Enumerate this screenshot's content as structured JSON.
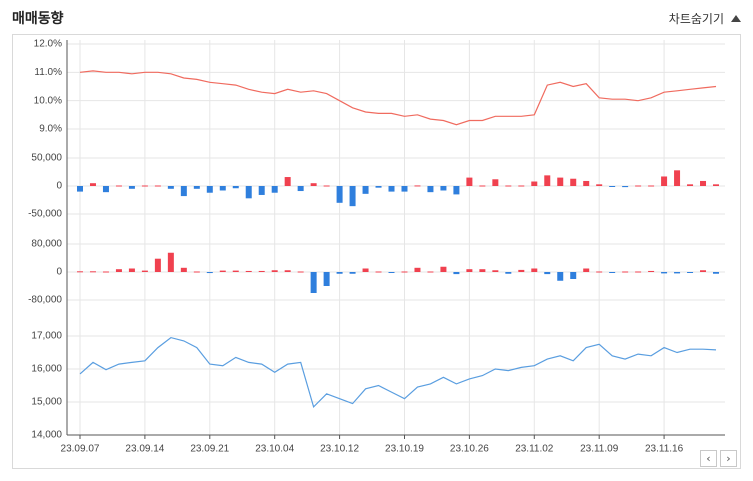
{
  "header": {
    "title": "매매동향",
    "toggle_label": "차트숨기기"
  },
  "colors": {
    "line_red": "#f06b5f",
    "line_blue": "#5a9ee0",
    "bar_pos": "#f0414f",
    "bar_neg": "#2f7fdd",
    "grid": "#e6e6e6"
  },
  "chart_data": [
    {
      "type": "line",
      "name": "panel-1",
      "x": [
        "23.09.07",
        "23.09.08",
        "23.09.11",
        "23.09.12",
        "23.09.13",
        "23.09.14",
        "23.09.15",
        "23.09.18",
        "23.09.19",
        "23.09.20",
        "23.09.21",
        "23.09.22",
        "23.09.25",
        "23.09.26",
        "23.09.27",
        "23.10.04",
        "23.10.05",
        "23.10.06",
        "23.10.10",
        "23.10.11",
        "23.10.12",
        "23.10.13",
        "23.10.16",
        "23.10.17",
        "23.10.18",
        "23.10.19",
        "23.10.20",
        "23.10.23",
        "23.10.24",
        "23.10.25",
        "23.10.26",
        "23.10.27",
        "23.10.30",
        "23.10.31",
        "23.11.01",
        "23.11.02",
        "23.11.03",
        "23.11.06",
        "23.11.07",
        "23.11.08",
        "23.11.09",
        "23.11.10",
        "23.11.13",
        "23.11.14",
        "23.11.15",
        "23.11.16",
        "23.11.17",
        "23.11.20",
        "23.11.21",
        "23.11.22"
      ],
      "values": [
        11.0,
        11.05,
        11.0,
        11.0,
        10.95,
        11.0,
        11.0,
        10.95,
        10.8,
        10.75,
        10.65,
        10.6,
        10.55,
        10.4,
        10.3,
        10.25,
        10.4,
        10.3,
        10.35,
        10.25,
        10.0,
        9.75,
        9.6,
        9.55,
        9.55,
        9.45,
        9.5,
        9.35,
        9.3,
        9.15,
        9.3,
        9.3,
        9.45,
        9.45,
        9.45,
        9.5,
        10.55,
        10.65,
        10.5,
        10.6,
        10.1,
        10.05,
        10.05,
        10.0,
        10.1,
        10.3,
        10.35,
        10.4,
        10.45,
        10.5
      ],
      "ylim": [
        8.0,
        12.0
      ],
      "yticks": [
        "12.0%",
        "11.0%",
        "10.0%",
        "9.0%"
      ]
    },
    {
      "type": "bar",
      "name": "panel-2",
      "x_ref": "panel-1",
      "values": [
        -10000,
        5000,
        -11000,
        0,
        -5000,
        0,
        0,
        -5000,
        -18000,
        -5000,
        -12000,
        -8000,
        -4000,
        -22000,
        -16000,
        -12000,
        16000,
        -9000,
        5000,
        0,
        -30000,
        -36000,
        -14000,
        -3000,
        -10000,
        -10000,
        1000,
        -11000,
        -8000,
        -15000,
        15000,
        0,
        12000,
        0,
        0,
        8000,
        19000,
        15000,
        13000,
        9000,
        3000,
        -1000,
        -2000,
        0,
        0,
        17000,
        28000,
        3000,
        9000,
        3000
      ],
      "ylim": [
        -90000,
        50000
      ],
      "yticks": [
        "50,000",
        "0",
        "-50,000"
      ]
    },
    {
      "type": "bar",
      "name": "panel-3",
      "x_ref": "panel-1",
      "values": [
        2000,
        2000,
        0,
        8000,
        10000,
        4000,
        38000,
        55000,
        12000,
        0,
        -3000,
        4000,
        4000,
        3000,
        3000,
        5000,
        5000,
        0,
        -60000,
        -40000,
        -5000,
        -5000,
        10000,
        0,
        -2000,
        0,
        12000,
        0,
        15000,
        -6000,
        8000,
        8000,
        5000,
        -5000,
        6000,
        10000,
        -6000,
        -25000,
        -20000,
        10000,
        0,
        -2000,
        0,
        0,
        3000,
        -4000,
        -4000,
        -2000,
        5000,
        -5000
      ],
      "ylim": [
        -100000,
        100000
      ],
      "yticks": [
        "80,000",
        "0",
        "-80,000"
      ]
    },
    {
      "type": "line",
      "name": "panel-4",
      "x_ref": "panel-1",
      "values": [
        15850,
        16200,
        15980,
        16150,
        16200,
        16250,
        16650,
        16950,
        16850,
        16650,
        16150,
        16100,
        16350,
        16200,
        16150,
        15900,
        16150,
        16200,
        14850,
        15250,
        15100,
        14950,
        15400,
        15500,
        15300,
        15100,
        15450,
        15550,
        15750,
        15550,
        15700,
        15800,
        16000,
        15950,
        16050,
        16100,
        16300,
        16400,
        16250,
        16650,
        16750,
        16400,
        16300,
        16450,
        16400,
        16650,
        16500,
        16600,
        16600,
        16580
      ],
      "ylim": [
        14000,
        18000
      ],
      "yticks": [
        "17,000",
        "16,000",
        "15,000",
        "14,000"
      ]
    }
  ],
  "x_labels": [
    "23.09.07",
    "23.09.14",
    "23.09.21",
    "23.10.04",
    "23.10.12",
    "23.10.19",
    "23.10.26",
    "23.11.02",
    "23.11.09",
    "23.11.16"
  ],
  "nav": {
    "prev": "‹",
    "next": "›"
  }
}
